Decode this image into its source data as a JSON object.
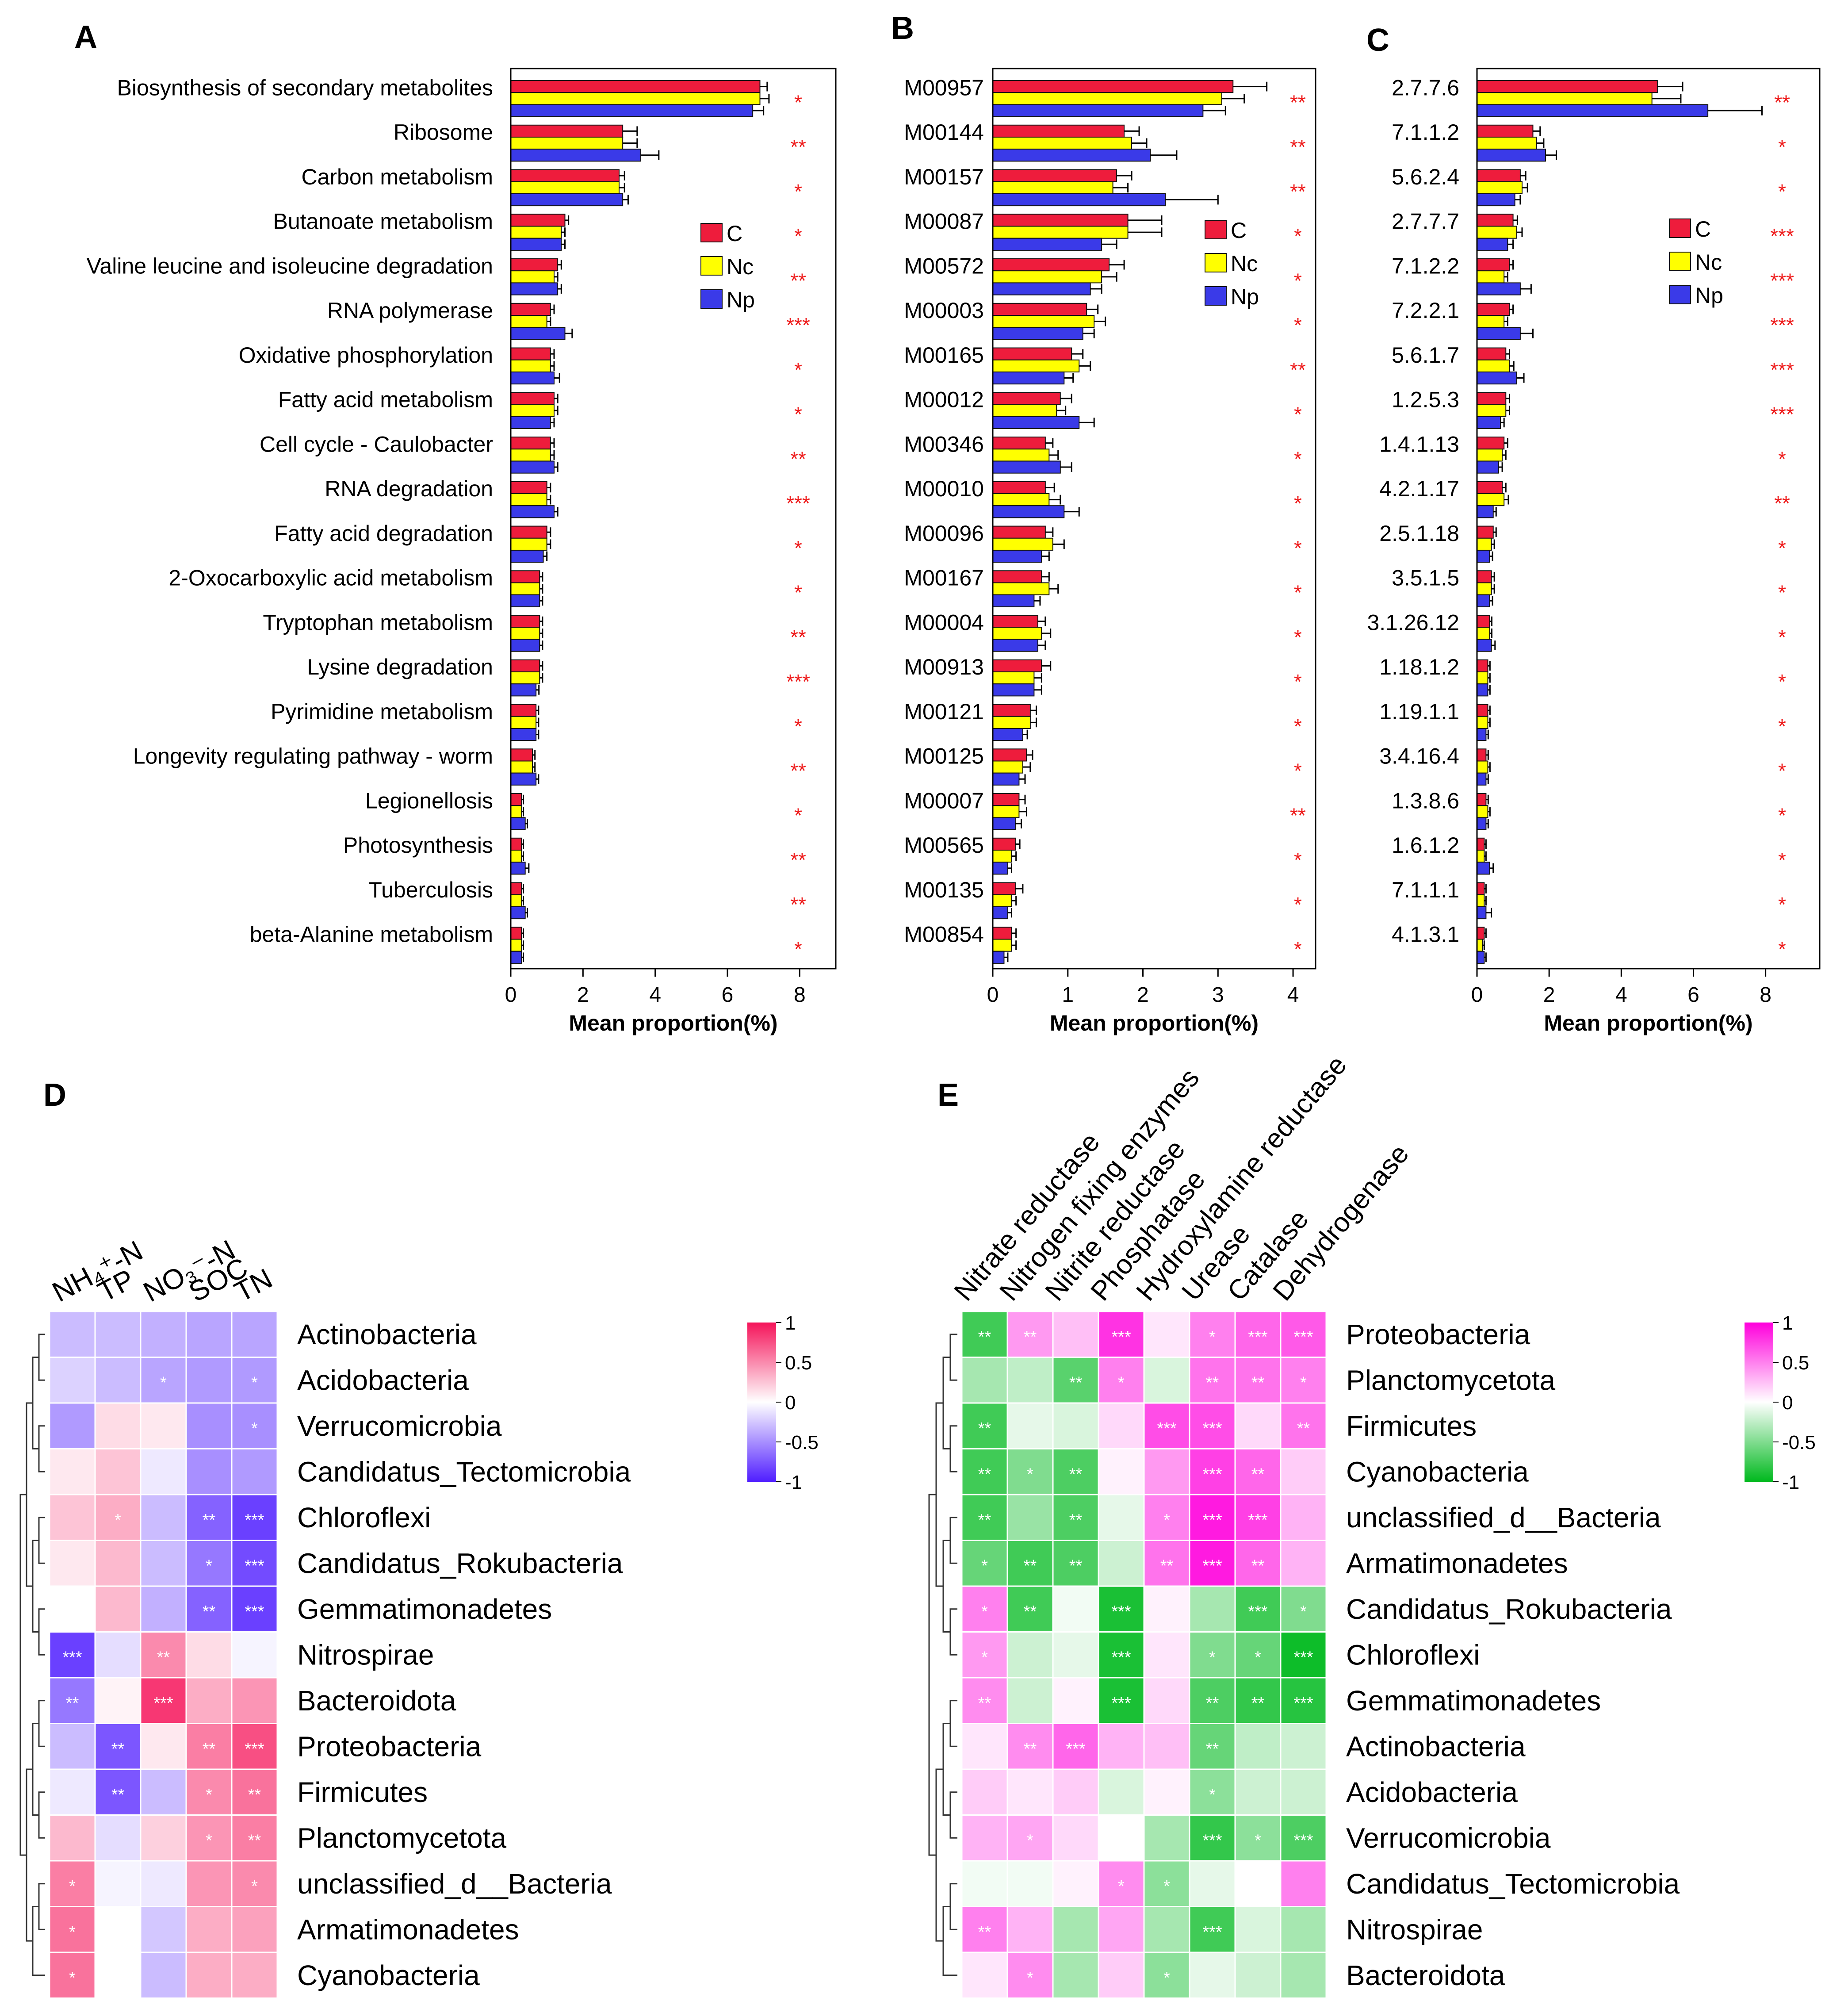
{
  "colors": {
    "C": "#ee1c3c",
    "Nc": "#ffff00",
    "Np": "#3a3ae8",
    "star": "#ee1c1c"
  },
  "chart_data": [
    {
      "panel": "A",
      "type": "bar",
      "orientation": "horizontal",
      "xlabel": "Mean proportion(%)",
      "xlim": [
        0,
        9
      ],
      "xticks": [
        0,
        2,
        4,
        6,
        8
      ],
      "legend": [
        "C",
        "Nc",
        "Np"
      ],
      "categories": [
        "Biosynthesis of secondary metabolites",
        "Ribosome",
        "Carbon metabolism",
        "Butanoate metabolism",
        "Valine leucine and isoleucine degradation",
        "RNA polymerase",
        "Oxidative phosphorylation",
        "Fatty acid metabolism",
        "Cell cycle - Caulobacter",
        "RNA degradation",
        "Fatty acid degradation",
        "2-Oxocarboxylic acid metabolism",
        "Tryptophan metabolism",
        "Lysine degradation",
        "Pyrimidine metabolism",
        "Longevity regulating pathway - worm",
        "Legionellosis",
        "Photosynthesis",
        "Tuberculosis",
        "beta-Alanine metabolism"
      ],
      "series": [
        {
          "name": "C",
          "values": [
            6.9,
            3.1,
            3.0,
            1.5,
            1.3,
            1.1,
            1.1,
            1.2,
            1.1,
            1.0,
            1.0,
            0.8,
            0.8,
            0.8,
            0.7,
            0.6,
            0.3,
            0.3,
            0.3,
            0.3
          ],
          "errors": [
            0.2,
            0.4,
            0.15,
            0.1,
            0.1,
            0.1,
            0.1,
            0.1,
            0.1,
            0.1,
            0.1,
            0.08,
            0.08,
            0.08,
            0.07,
            0.07,
            0.05,
            0.05,
            0.05,
            0.05
          ]
        },
        {
          "name": "Nc",
          "values": [
            6.9,
            3.1,
            3.0,
            1.4,
            1.2,
            1.0,
            1.1,
            1.2,
            1.1,
            1.0,
            1.0,
            0.8,
            0.8,
            0.8,
            0.7,
            0.6,
            0.3,
            0.3,
            0.3,
            0.3
          ],
          "errors": [
            0.25,
            0.4,
            0.15,
            0.1,
            0.1,
            0.1,
            0.1,
            0.1,
            0.1,
            0.1,
            0.1,
            0.08,
            0.08,
            0.08,
            0.07,
            0.07,
            0.05,
            0.05,
            0.05,
            0.05
          ]
        },
        {
          "name": "Np",
          "values": [
            6.7,
            3.6,
            3.1,
            1.4,
            1.3,
            1.5,
            1.2,
            1.1,
            1.2,
            1.2,
            0.9,
            0.8,
            0.8,
            0.7,
            0.7,
            0.7,
            0.4,
            0.4,
            0.4,
            0.3
          ],
          "errors": [
            0.3,
            0.5,
            0.15,
            0.1,
            0.1,
            0.2,
            0.15,
            0.1,
            0.1,
            0.1,
            0.1,
            0.08,
            0.08,
            0.08,
            0.07,
            0.07,
            0.06,
            0.1,
            0.06,
            0.05
          ]
        }
      ],
      "significance": [
        "*",
        "**",
        "*",
        "*",
        "**",
        "***",
        "*",
        "*",
        "**",
        "***",
        "*",
        "*",
        "**",
        "***",
        "*",
        "**",
        "*",
        "**",
        "**",
        "*"
      ]
    },
    {
      "panel": "B",
      "type": "bar",
      "orientation": "horizontal",
      "xlabel": "Mean proportion(%)",
      "xlim": [
        0,
        4.3
      ],
      "xticks": [
        0,
        1,
        2,
        3,
        4
      ],
      "legend": [
        "C",
        "Nc",
        "Np"
      ],
      "categories": [
        "M00957",
        "M00144",
        "M00157",
        "M00087",
        "M00572",
        "M00003",
        "M00165",
        "M00012",
        "M00346",
        "M00010",
        "M00096",
        "M00167",
        "M00004",
        "M00913",
        "M00121",
        "M00125",
        "M00007",
        "M00565",
        "M00135",
        "M00854"
      ],
      "series": [
        {
          "name": "C",
          "values": [
            3.2,
            1.75,
            1.65,
            1.8,
            1.55,
            1.25,
            1.05,
            0.9,
            0.7,
            0.7,
            0.7,
            0.65,
            0.6,
            0.65,
            0.5,
            0.45,
            0.35,
            0.3,
            0.3,
            0.25
          ],
          "errors": [
            0.45,
            0.2,
            0.2,
            0.45,
            0.2,
            0.15,
            0.15,
            0.15,
            0.1,
            0.12,
            0.1,
            0.1,
            0.1,
            0.12,
            0.08,
            0.08,
            0.08,
            0.06,
            0.1,
            0.06
          ]
        },
        {
          "name": "Nc",
          "values": [
            3.05,
            1.85,
            1.6,
            1.8,
            1.45,
            1.35,
            1.15,
            0.85,
            0.75,
            0.75,
            0.8,
            0.75,
            0.65,
            0.55,
            0.5,
            0.4,
            0.35,
            0.25,
            0.25,
            0.25
          ],
          "errors": [
            0.3,
            0.2,
            0.2,
            0.45,
            0.2,
            0.15,
            0.15,
            0.12,
            0.12,
            0.15,
            0.15,
            0.12,
            0.12,
            0.1,
            0.08,
            0.1,
            0.1,
            0.06,
            0.06,
            0.06
          ]
        },
        {
          "name": "Np",
          "values": [
            2.8,
            2.1,
            2.3,
            1.45,
            1.3,
            1.2,
            0.95,
            1.15,
            0.9,
            0.95,
            0.65,
            0.55,
            0.6,
            0.55,
            0.4,
            0.35,
            0.3,
            0.2,
            0.2,
            0.15
          ],
          "errors": [
            0.3,
            0.35,
            0.7,
            0.2,
            0.15,
            0.15,
            0.12,
            0.2,
            0.15,
            0.2,
            0.1,
            0.08,
            0.1,
            0.1,
            0.06,
            0.08,
            0.08,
            0.05,
            0.05,
            0.05
          ]
        }
      ],
      "significance": [
        "**",
        "**",
        "**",
        "*",
        "*",
        "*",
        "**",
        "*",
        "*",
        "*",
        "*",
        "*",
        "*",
        "*",
        "*",
        "*",
        "**",
        "*",
        "*",
        "*"
      ]
    },
    {
      "panel": "C",
      "type": "bar",
      "orientation": "horizontal",
      "xlabel": "Mean proportion(%)",
      "xlim": [
        0,
        9.5
      ],
      "xticks": [
        0,
        2,
        4,
        6,
        8
      ],
      "legend": [
        "C",
        "Nc",
        "Np"
      ],
      "categories": [
        "2.7.7.6",
        "7.1.1.2",
        "5.6.2.4",
        "2.7.7.7",
        "7.1.2.2",
        "7.2.2.1",
        "5.6.1.7",
        "1.2.5.3",
        "1.4.1.13",
        "4.2.1.17",
        "2.5.1.18",
        "3.5.1.5",
        "3.1.26.12",
        "1.18.1.2",
        "1.19.1.1",
        "3.4.16.4",
        "1.3.8.6",
        "1.6.1.2",
        "7.1.1.1",
        "4.1.3.1"
      ],
      "series": [
        {
          "name": "C",
          "values": [
            5.0,
            1.55,
            1.2,
            1.0,
            0.9,
            0.9,
            0.8,
            0.8,
            0.75,
            0.7,
            0.45,
            0.4,
            0.35,
            0.3,
            0.3,
            0.25,
            0.25,
            0.2,
            0.2,
            0.2
          ],
          "errors": [
            0.7,
            0.2,
            0.15,
            0.12,
            0.1,
            0.1,
            0.1,
            0.1,
            0.1,
            0.1,
            0.08,
            0.08,
            0.06,
            0.06,
            0.06,
            0.06,
            0.06,
            0.05,
            0.05,
            0.05
          ]
        },
        {
          "name": "Nc",
          "values": [
            4.85,
            1.65,
            1.25,
            1.1,
            0.75,
            0.75,
            0.9,
            0.8,
            0.7,
            0.75,
            0.4,
            0.4,
            0.35,
            0.3,
            0.3,
            0.3,
            0.3,
            0.2,
            0.2,
            0.15
          ],
          "errors": [
            0.8,
            0.2,
            0.15,
            0.15,
            0.1,
            0.1,
            0.12,
            0.1,
            0.1,
            0.12,
            0.08,
            0.08,
            0.06,
            0.06,
            0.06,
            0.06,
            0.06,
            0.05,
            0.05,
            0.05
          ]
        },
        {
          "name": "Np",
          "values": [
            6.4,
            1.9,
            1.05,
            0.85,
            1.2,
            1.2,
            1.1,
            0.65,
            0.6,
            0.45,
            0.35,
            0.35,
            0.4,
            0.3,
            0.25,
            0.25,
            0.25,
            0.35,
            0.25,
            0.2
          ],
          "errors": [
            1.5,
            0.3,
            0.15,
            0.15,
            0.3,
            0.35,
            0.2,
            0.1,
            0.1,
            0.08,
            0.08,
            0.08,
            0.1,
            0.06,
            0.06,
            0.06,
            0.06,
            0.1,
            0.15,
            0.05
          ]
        }
      ],
      "significance": [
        "**",
        "*",
        "*",
        "***",
        "***",
        "***",
        "***",
        "***",
        "*",
        "**",
        "*",
        "*",
        "*",
        "*",
        "*",
        "*",
        "*",
        "*",
        "*",
        "*"
      ]
    },
    {
      "panel": "D",
      "type": "heatmap",
      "colorscale": "blue-white-red",
      "range": [
        -1,
        1
      ],
      "colorbar_ticks": [
        "1",
        "0.5",
        "0",
        "-0.5",
        "-1"
      ],
      "columns": [
        "NH₄⁺-N",
        "TP",
        "NO₃⁻-N",
        "SOC",
        "TN"
      ],
      "rows": [
        "Actinobacteria",
        "Acidobacteria",
        "Verrucomicrobia",
        "Candidatus_Tectomicrobia",
        "Chloroflexi",
        "Candidatus_Rokubacteria",
        "Gemmatimonadetes",
        "Nitrospirae",
        "Bacteroidota",
        "Proteobacteria",
        "Firmicutes",
        "Planctomycetota",
        "unclassified_d__Bacteria",
        "Armatimonadetes",
        "Cyanobacteria"
      ],
      "values": [
        [
          -0.3,
          -0.3,
          -0.35,
          -0.4,
          -0.4
        ],
        [
          -0.2,
          -0.3,
          -0.4,
          -0.45,
          -0.45
        ],
        [
          -0.45,
          0.15,
          0.1,
          -0.5,
          -0.5
        ],
        [
          0.1,
          0.25,
          -0.1,
          -0.5,
          -0.45
        ],
        [
          0.25,
          0.35,
          -0.3,
          -0.7,
          -0.85
        ],
        [
          0.1,
          0.3,
          -0.3,
          -0.6,
          -0.8
        ],
        [
          0.0,
          0.3,
          -0.35,
          -0.7,
          -0.85
        ],
        [
          -0.85,
          -0.15,
          0.5,
          0.15,
          -0.05
        ],
        [
          -0.6,
          0.05,
          0.85,
          0.35,
          0.45
        ],
        [
          -0.3,
          -0.75,
          0.1,
          0.55,
          0.75
        ],
        [
          -0.1,
          -0.75,
          -0.3,
          0.5,
          0.6
        ],
        [
          0.3,
          -0.15,
          0.2,
          0.45,
          0.55
        ],
        [
          0.55,
          -0.05,
          -0.1,
          0.45,
          0.5
        ],
        [
          0.6,
          0.0,
          -0.25,
          0.35,
          0.4
        ],
        [
          0.6,
          0.0,
          -0.3,
          0.35,
          0.35
        ]
      ],
      "stars": [
        [
          "",
          "",
          "",
          "",
          ""
        ],
        [
          "",
          "",
          "*",
          "",
          "*"
        ],
        [
          "",
          "",
          "",
          "",
          "*"
        ],
        [
          "",
          "",
          "",
          "",
          ""
        ],
        [
          "",
          "*",
          "",
          "**",
          "***"
        ],
        [
          "",
          "",
          "",
          "*",
          "***"
        ],
        [
          "",
          "",
          "",
          "**",
          "***"
        ],
        [
          "***",
          "",
          "**",
          "",
          ""
        ],
        [
          "**",
          "",
          "***",
          "",
          ""
        ],
        [
          "",
          "**",
          "",
          "**",
          "***"
        ],
        [
          "",
          "**",
          "",
          "*",
          "**"
        ],
        [
          "",
          "",
          "",
          "*",
          "**"
        ],
        [
          "*",
          "",
          "",
          "",
          "*"
        ],
        [
          "*",
          "",
          "",
          "",
          ""
        ],
        [
          "*",
          "",
          "",
          "",
          ""
        ]
      ]
    },
    {
      "panel": "E",
      "type": "heatmap",
      "colorscale": "green-white-magenta",
      "range": [
        -1,
        1
      ],
      "colorbar_ticks": [
        "1",
        "0.5",
        "0",
        "-0.5",
        "-1"
      ],
      "columns": [
        "Nitrate reductase",
        "Nitrogen fixing enzymes",
        "Nitrite reductase",
        "Phosphatase",
        "Hydroxylamine reductase",
        "Urease",
        "Catalase",
        "Dehydrogenase"
      ],
      "rows": [
        "Proteobacteria",
        "Planctomycetota",
        "Firmicutes",
        "Cyanobacteria",
        "unclassified_d__Bacteria",
        "Armatimonadetes",
        "Candidatus_Rokubacteria",
        "Chloroflexi",
        "Gemmatimonadetes",
        "Actinobacteria",
        "Acidobacteria",
        "Verrucomicrobia",
        "Candidatus_Tectomicrobia",
        "Nitrospirae",
        "Bacteroidota"
      ],
      "values": [
        [
          -0.75,
          0.4,
          0.25,
          0.8,
          0.1,
          0.5,
          0.6,
          0.65
        ],
        [
          -0.35,
          -0.25,
          -0.65,
          0.5,
          -0.15,
          0.55,
          0.55,
          0.5
        ],
        [
          -0.75,
          -0.1,
          -0.15,
          0.15,
          0.7,
          0.7,
          0.15,
          0.55
        ],
        [
          -0.75,
          -0.5,
          -0.7,
          0.05,
          0.4,
          0.75,
          0.6,
          0.2
        ],
        [
          -0.75,
          -0.4,
          -0.7,
          -0.1,
          0.5,
          0.9,
          0.75,
          0.3
        ],
        [
          -0.6,
          -0.75,
          -0.7,
          -0.2,
          0.55,
          0.9,
          0.6,
          0.3
        ],
        [
          0.5,
          -0.75,
          -0.05,
          -0.9,
          0.05,
          -0.35,
          -0.75,
          -0.5
        ],
        [
          0.4,
          -0.2,
          -0.1,
          -0.9,
          0.1,
          -0.5,
          -0.6,
          -0.95
        ],
        [
          0.45,
          -0.2,
          0.05,
          -0.9,
          0.15,
          -0.7,
          -0.8,
          -0.85
        ],
        [
          0.1,
          0.45,
          0.6,
          0.3,
          0.25,
          -0.6,
          -0.25,
          -0.2
        ],
        [
          0.2,
          0.1,
          0.2,
          -0.15,
          0.05,
          -0.45,
          -0.2,
          -0.2
        ],
        [
          0.3,
          0.35,
          0.15,
          0.0,
          -0.35,
          -0.8,
          -0.45,
          -0.7
        ],
        [
          -0.05,
          -0.05,
          0.05,
          0.45,
          -0.45,
          -0.1,
          0.0,
          0.5
        ],
        [
          0.5,
          0.3,
          -0.35,
          0.35,
          -0.35,
          -0.75,
          -0.15,
          -0.35
        ],
        [
          0.1,
          0.45,
          -0.35,
          0.2,
          -0.45,
          -0.1,
          -0.2,
          -0.35
        ]
      ],
      "stars": [
        [
          "**",
          "**",
          "",
          "***",
          "",
          "*",
          "***",
          "***"
        ],
        [
          "",
          "",
          "**",
          "*",
          "",
          "**",
          "**",
          "*"
        ],
        [
          "**",
          "",
          "",
          "",
          "***",
          "***",
          "",
          "**"
        ],
        [
          "**",
          "*",
          "**",
          "",
          "",
          "***",
          "**",
          ""
        ],
        [
          "**",
          "",
          "**",
          "",
          "*",
          "***",
          "***",
          ""
        ],
        [
          "*",
          "**",
          "**",
          "",
          "**",
          "***",
          "**",
          ""
        ],
        [
          "*",
          "**",
          "",
          "***",
          "",
          "",
          "***",
          "*"
        ],
        [
          "*",
          "",
          "",
          "***",
          "",
          "*",
          "*",
          "***"
        ],
        [
          "**",
          "",
          "",
          "***",
          "",
          "**",
          "**",
          "***"
        ],
        [
          "",
          "**",
          "***",
          "",
          "",
          "**",
          "",
          ""
        ],
        [
          "",
          "",
          "",
          "",
          "",
          "*",
          "",
          ""
        ],
        [
          "",
          "*",
          "",
          "",
          "",
          "***",
          "*",
          "***"
        ],
        [
          "",
          "",
          "",
          "*",
          "*",
          "",
          "",
          ""
        ],
        [
          "**",
          "",
          "",
          "",
          "",
          "***",
          "",
          ""
        ],
        [
          "",
          "*",
          "",
          "",
          "*",
          "",
          "",
          ""
        ]
      ]
    }
  ]
}
